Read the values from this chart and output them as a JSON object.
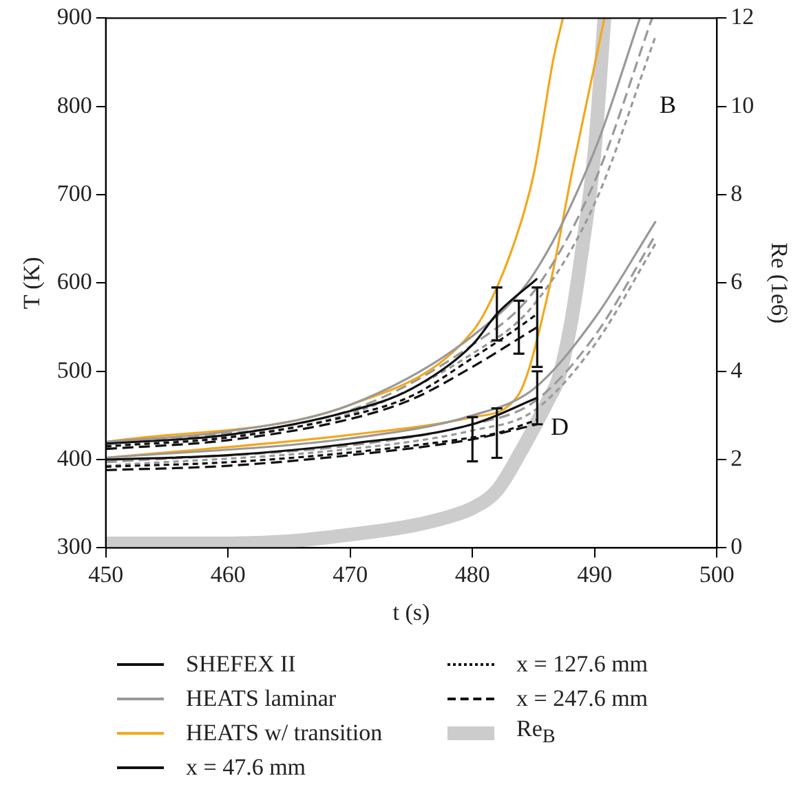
{
  "chart_data": {
    "type": "line",
    "xlabel": "t (s)",
    "ylabel": "T (K)",
    "y2label": "Re (1e6)",
    "xlim": [
      450,
      500
    ],
    "xticks": [
      450,
      460,
      470,
      480,
      490,
      500
    ],
    "ylim": [
      300,
      900
    ],
    "yticks": [
      300,
      400,
      500,
      600,
      700,
      800,
      900
    ],
    "y2lim": [
      0,
      12
    ],
    "y2ticks": [
      0,
      2,
      4,
      6,
      8,
      10,
      12
    ],
    "grid": false,
    "legend": "bottom",
    "marker": "none",
    "annotations": [
      "B",
      "D"
    ],
    "series": [
      {
        "name": "SHEFEX II",
        "color": "#111111",
        "line_style": "solid",
        "x": [
          450,
          460,
          470,
          475,
          480,
          482,
          485.3
        ],
        "values": [
          418,
          428,
          455,
          480,
          530,
          565,
          605
        ],
        "errors": [
          null,
          null,
          null,
          null,
          null,
          30,
          null
        ]
      },
      {
        "name": "HEATS laminar",
        "color": "#999999",
        "line_style": "solid",
        "x": [
          450,
          460,
          470,
          480,
          485,
          490,
          493.7
        ],
        "values": [
          420,
          432,
          462,
          540,
          610,
          750,
          900
        ]
      },
      {
        "name": "HEATS w/ transition",
        "color": "#f2a81d",
        "line_style": "solid",
        "x": [
          450,
          470,
          480,
          482,
          484,
          485.1,
          486.6,
          487.4
        ],
        "values": [
          420,
          462,
          545,
          595,
          670,
          729,
          852,
          900
        ]
      },
      {
        "name": "x = 47.6 mm",
        "color": "#111111",
        "line_style": "solid",
        "x": [
          450,
          460,
          470,
          480,
          485.3
        ],
        "values": [
          400,
          405,
          418,
          440,
          470
        ],
        "errors": [
          null,
          null,
          null,
          null,
          30
        ]
      },
      {
        "name": "x = 127.6 mm",
        "color": "#111111",
        "line_style": "dotted",
        "x": [
          450,
          460,
          470,
          475,
          480,
          483.8,
          485.3
        ],
        "values": [
          415,
          425,
          450,
          472,
          515,
          550,
          565
        ],
        "errors": [
          null,
          null,
          null,
          null,
          null,
          30,
          null
        ]
      },
      {
        "name": "x = 247.6 mm",
        "color": "#111111",
        "line_style": "dashed",
        "x": [
          450,
          460,
          470,
          475,
          480,
          485.3
        ],
        "values": [
          412,
          422,
          446,
          468,
          505,
          550
        ],
        "errors": [
          null,
          null,
          null,
          null,
          null,
          45
        ]
      },
      {
        "name": "Re$_{B}$",
        "color": "#cccccc",
        "line_style": "solid",
        "axis": "y2",
        "x": [
          450,
          460,
          465,
          470,
          475,
          478,
          480,
          482,
          484,
          486.3,
          487,
          488,
          489,
          490,
          490.8
        ],
        "values": [
          0.1,
          0.1,
          0.15,
          0.3,
          0.5,
          0.7,
          0.9,
          1.3,
          2.2,
          3.4,
          3.8,
          5,
          6.8,
          9,
          12
        ]
      },
      {
        "color": "#111111",
        "line_style": "dotted",
        "x": [
          450,
          460,
          470,
          480,
          482,
          485.3
        ],
        "values": [
          392,
          397,
          408,
          425,
          430,
          445
        ],
        "errors": [
          null,
          null,
          null,
          null,
          28,
          null
        ]
      },
      {
        "color": "#111111",
        "line_style": "dashed",
        "x": [
          450,
          460,
          470,
          480,
          485.3
        ],
        "values": [
          388,
          393,
          405,
          423,
          440
        ],
        "errors": [
          null,
          null,
          null,
          25,
          null
        ]
      },
      {
        "color": "#999999",
        "line_style": "dotted",
        "x": [
          450,
          470,
          480,
          485,
          490,
          495
        ],
        "values": [
          414,
          452,
          520,
          575,
          690,
          880
        ]
      },
      {
        "color": "#999999",
        "line_style": "dashed",
        "x": [
          450,
          470,
          480,
          485,
          490,
          494.7
        ],
        "values": [
          417,
          456,
          530,
          590,
          715,
          900
        ]
      },
      {
        "color": "#999999",
        "line_style": "solid",
        "x": [
          450,
          470,
          480,
          485,
          490,
          495
        ],
        "values": [
          402,
          424,
          450,
          480,
          560,
          670
        ]
      },
      {
        "color": "#999999",
        "line_style": "dotted",
        "x": [
          450,
          470,
          480,
          485,
          490,
          495
        ],
        "values": [
          393,
          412,
          433,
          455,
          530,
          645
        ]
      },
      {
        "color": "#999999",
        "line_style": "dashed",
        "x": [
          450,
          470,
          480,
          485,
          490,
          495
        ],
        "values": [
          397,
          416,
          440,
          465,
          540,
          655
        ]
      },
      {
        "color": "#f2a81d",
        "line_style": "solid",
        "x": [
          450,
          470,
          480,
          483.7,
          486.3,
          488.2,
          490,
          490.8
        ],
        "values": [
          402,
          428,
          448,
          472,
          595,
          729,
          847,
          900
        ]
      }
    ]
  }
}
